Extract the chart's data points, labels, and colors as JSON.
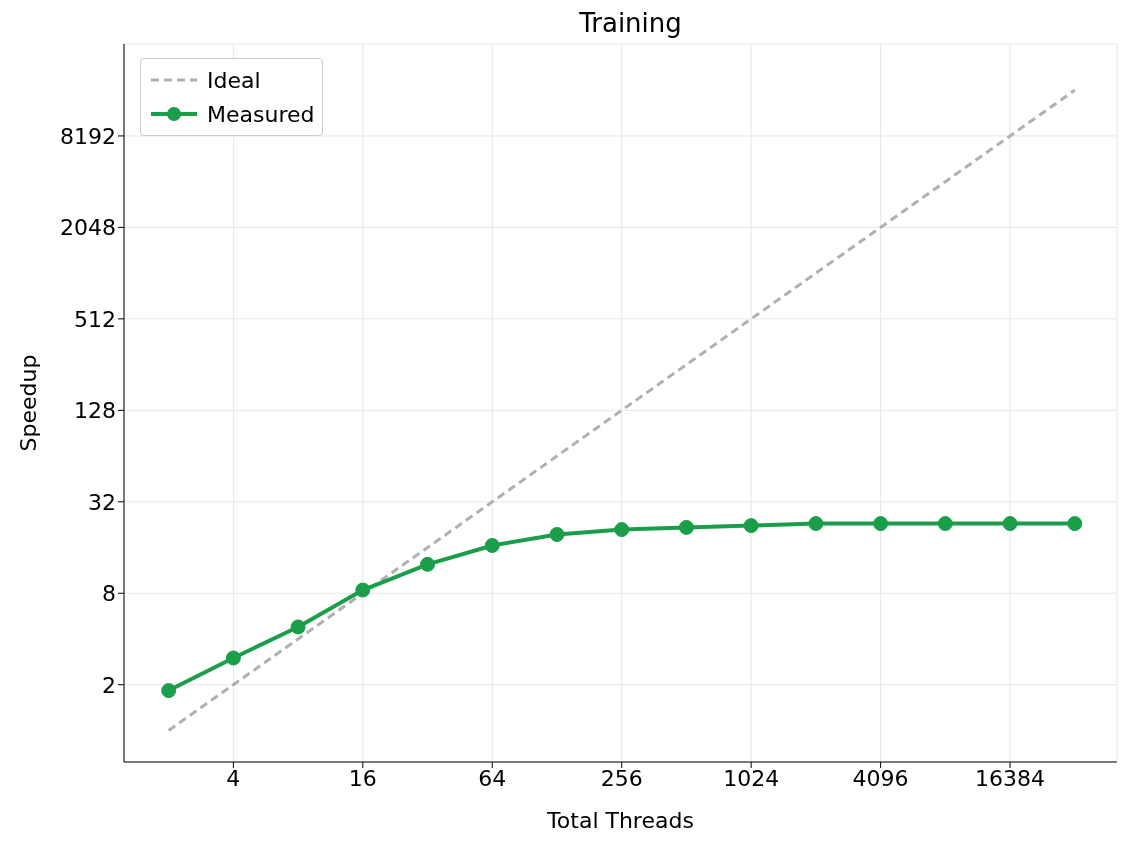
{
  "chart_data": {
    "type": "line",
    "title": "Training",
    "xlabel": "Total Threads",
    "ylabel": "Speedup",
    "log": "xy",
    "grid": true,
    "legend": "top left",
    "xlim": [
      1.24,
      51500
    ],
    "xticks": [
      4,
      16,
      64,
      256,
      1024,
      4096,
      16384
    ],
    "ylim": [
      0.62,
      33000
    ],
    "yticks": [
      2,
      8,
      32,
      128,
      512,
      2048,
      8192
    ],
    "x": [
      2,
      4,
      8,
      16,
      32,
      64,
      128,
      256,
      512,
      1024,
      2048,
      4096,
      8192,
      16384,
      32768
    ],
    "series": [
      {
        "name": "Ideal",
        "color": "#b0b0b0",
        "line_style": "dashed",
        "marker": "none",
        "values": [
          1,
          2,
          4,
          8,
          16,
          32,
          64,
          128,
          256,
          512,
          1024,
          2048,
          4096,
          8192,
          16384
        ]
      },
      {
        "name": "Measured",
        "color": "#1a9e4a",
        "line_style": "solid",
        "marker": "circle",
        "values": [
          1.83,
          3.0,
          4.8,
          8.4,
          12.4,
          16.5,
          19.5,
          21,
          21.7,
          22.3,
          23,
          23,
          23,
          23,
          23
        ]
      }
    ]
  }
}
